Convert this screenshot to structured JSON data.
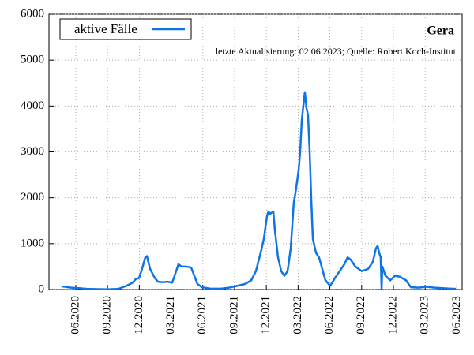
{
  "chart_data": {
    "type": "line",
    "title": "Gera",
    "subtitle": "letzte Aktualisierung: 02.06.2023; Quelle: Robert Koch-Institut",
    "x": [
      2020.305,
      2020.38,
      2020.442,
      2020.504,
      2020.566,
      2020.666,
      2020.753,
      2020.815,
      2020.865,
      2020.89,
      2020.915,
      2020.939,
      2020.964,
      2020.977,
      2021.002,
      2021.039,
      2021.064,
      2021.101,
      2021.138,
      2021.176,
      2021.201,
      2021.225,
      2021.25,
      2021.288,
      2021.325,
      2021.35,
      2021.375,
      2021.412,
      2021.474,
      2021.561,
      2021.623,
      2021.686,
      2021.748,
      2021.798,
      2021.835,
      2021.872,
      2021.897,
      2021.922,
      2021.934,
      2021.947,
      2021.972,
      2021.984,
      2022.009,
      2022.034,
      2022.059,
      2022.084,
      2022.109,
      2022.133,
      2022.146,
      2022.171,
      2022.183,
      2022.196,
      2022.208,
      2022.22,
      2022.233,
      2022.245,
      2022.258,
      2022.27,
      2022.283,
      2022.308,
      2022.332,
      2022.357,
      2022.382,
      2022.419,
      2022.457,
      2022.494,
      2022.531,
      2022.556,
      2022.581,
      2022.618,
      2022.668,
      2022.718,
      2022.755,
      2022.78,
      2022.793,
      2022.805,
      2022.817,
      2022.824,
      2022.83,
      2022.855,
      2022.892,
      2022.929,
      2022.967,
      2023.017,
      2023.054,
      2023.116,
      2023.178,
      2023.24,
      2023.303,
      2023.365,
      2023.408
    ],
    "series": [
      {
        "name": "aktive Fälle",
        "color": "#0f74e6",
        "values": [
          70,
          40,
          30,
          15,
          10,
          5,
          15,
          80,
          150,
          230,
          250,
          450,
          700,
          730,
          450,
          250,
          170,
          160,
          170,
          150,
          350,
          550,
          500,
          500,
          480,
          300,
          120,
          50,
          20,
          20,
          40,
          80,
          120,
          200,
          400,
          800,
          1100,
          1600,
          1700,
          1650,
          1700,
          1300,
          700,
          400,
          300,
          400,
          900,
          1900,
          2100,
          2600,
          3000,
          3700,
          4000,
          4300,
          3950,
          3800,
          3000,
          2000,
          1100,
          800,
          700,
          450,
          200,
          80,
          250,
          400,
          550,
          700,
          650,
          500,
          400,
          450,
          600,
          900,
          950,
          800,
          700,
          0,
          500,
          300,
          200,
          300,
          280,
          200,
          50,
          40,
          60,
          40,
          30,
          20,
          15
        ]
      }
    ],
    "xlim": [
      2020.206,
      2023.458
    ],
    "xticks": [
      {
        "value": 2020.417,
        "label": "06.2020"
      },
      {
        "value": 2020.667,
        "label": "09.2020"
      },
      {
        "value": 2020.917,
        "label": "12.2020"
      },
      {
        "value": 2021.167,
        "label": "03.2021"
      },
      {
        "value": 2021.417,
        "label": "06.2021"
      },
      {
        "value": 2021.667,
        "label": "09.2021"
      },
      {
        "value": 2021.917,
        "label": "12.2021"
      },
      {
        "value": 2022.167,
        "label": "03.2022"
      },
      {
        "value": 2022.417,
        "label": "06.2022"
      },
      {
        "value": 2022.667,
        "label": "09.2022"
      },
      {
        "value": 2022.917,
        "label": "12.2022"
      },
      {
        "value": 2023.167,
        "label": "03.2023"
      },
      {
        "value": 2023.417,
        "label": "06.2023"
      }
    ],
    "ylim": [
      0,
      6000
    ],
    "yticks": [
      0,
      1000,
      2000,
      3000,
      4000,
      5000,
      6000
    ],
    "grid": true,
    "legend": "upper left"
  }
}
